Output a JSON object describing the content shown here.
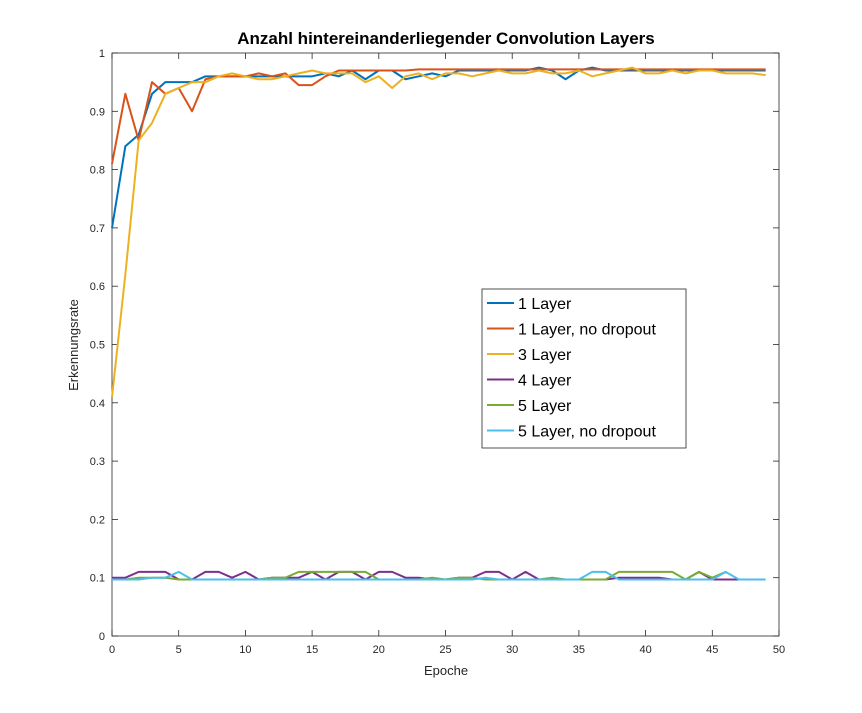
{
  "chart_data": {
    "type": "line",
    "title": "Anzahl hintereinanderliegender Convolution Layers",
    "xlabel": "Epoche",
    "ylabel": "Erkennungsrate",
    "xlim": [
      0,
      50
    ],
    "ylim": [
      0,
      1
    ],
    "xticks": [
      "0",
      "5",
      "10",
      "15",
      "20",
      "25",
      "30",
      "35",
      "40",
      "45",
      "50"
    ],
    "yticks": [
      "0",
      "0.1",
      "0.2",
      "0.3",
      "0.4",
      "0.5",
      "0.6",
      "0.7",
      "0.8",
      "0.9",
      "1"
    ],
    "grid": false,
    "legend_position": "center-right",
    "series": [
      {
        "name": "1 Layer",
        "color": "#0072BD",
        "x": [
          0,
          1,
          2,
          3,
          4,
          5,
          6,
          7,
          8,
          9,
          10,
          11,
          12,
          13,
          14,
          15,
          16,
          17,
          18,
          19,
          20,
          21,
          22,
          23,
          24,
          25,
          26,
          27,
          28,
          29,
          30,
          31,
          32,
          33,
          34,
          35,
          36,
          37,
          38,
          39,
          40,
          41,
          42,
          43,
          44,
          45,
          46,
          47,
          48,
          49
        ],
        "values": [
          0.7,
          0.84,
          0.86,
          0.93,
          0.95,
          0.95,
          0.95,
          0.96,
          0.96,
          0.96,
          0.96,
          0.96,
          0.96,
          0.96,
          0.96,
          0.96,
          0.965,
          0.96,
          0.97,
          0.955,
          0.97,
          0.97,
          0.955,
          0.96,
          0.965,
          0.96,
          0.97,
          0.97,
          0.97,
          0.97,
          0.97,
          0.97,
          0.975,
          0.97,
          0.955,
          0.97,
          0.975,
          0.97,
          0.97,
          0.97,
          0.97,
          0.97,
          0.97,
          0.97,
          0.97,
          0.97,
          0.97,
          0.97,
          0.97,
          0.97
        ]
      },
      {
        "name": "1 Layer, no dropout",
        "color": "#D95319",
        "x": [
          0,
          1,
          2,
          3,
          4,
          5,
          6,
          7,
          8,
          9,
          10,
          11,
          12,
          13,
          14,
          15,
          16,
          17,
          18,
          19,
          20,
          21,
          22,
          23,
          24,
          25,
          26,
          27,
          28,
          29,
          30,
          31,
          32,
          33,
          34,
          35,
          36,
          37,
          38,
          39,
          40,
          41,
          42,
          43,
          44,
          45,
          46,
          47,
          48,
          49
        ],
        "values": [
          0.81,
          0.93,
          0.85,
          0.95,
          0.93,
          0.94,
          0.9,
          0.955,
          0.96,
          0.96,
          0.96,
          0.965,
          0.96,
          0.965,
          0.945,
          0.945,
          0.96,
          0.97,
          0.97,
          0.97,
          0.97,
          0.97,
          0.97,
          0.972,
          0.972,
          0.972,
          0.972,
          0.972,
          0.972,
          0.972,
          0.972,
          0.972,
          0.972,
          0.972,
          0.972,
          0.972,
          0.972,
          0.972,
          0.972,
          0.972,
          0.972,
          0.972,
          0.972,
          0.972,
          0.972,
          0.972,
          0.972,
          0.972,
          0.972,
          0.972
        ]
      },
      {
        "name": "3 Layer",
        "color": "#EDB120",
        "x": [
          0,
          1,
          2,
          3,
          4,
          5,
          6,
          7,
          8,
          9,
          10,
          11,
          12,
          13,
          14,
          15,
          16,
          17,
          18,
          19,
          20,
          21,
          22,
          23,
          24,
          25,
          26,
          27,
          28,
          29,
          30,
          31,
          32,
          33,
          34,
          35,
          36,
          37,
          38,
          39,
          40,
          41,
          42,
          43,
          44,
          45,
          46,
          47,
          48,
          49
        ],
        "values": [
          0.41,
          0.62,
          0.85,
          0.88,
          0.93,
          0.94,
          0.95,
          0.95,
          0.96,
          0.965,
          0.96,
          0.955,
          0.955,
          0.96,
          0.965,
          0.97,
          0.965,
          0.965,
          0.965,
          0.95,
          0.96,
          0.94,
          0.96,
          0.965,
          0.955,
          0.965,
          0.965,
          0.96,
          0.965,
          0.97,
          0.965,
          0.965,
          0.97,
          0.965,
          0.965,
          0.97,
          0.96,
          0.965,
          0.97,
          0.975,
          0.965,
          0.965,
          0.97,
          0.965,
          0.97,
          0.97,
          0.965,
          0.965,
          0.965,
          0.962
        ]
      },
      {
        "name": "4 Layer",
        "color": "#7E2F8E",
        "x": [
          0,
          1,
          2,
          3,
          4,
          5,
          6,
          7,
          8,
          9,
          10,
          11,
          12,
          13,
          14,
          15,
          16,
          17,
          18,
          19,
          20,
          21,
          22,
          23,
          24,
          25,
          26,
          27,
          28,
          29,
          30,
          31,
          32,
          33,
          34,
          35,
          36,
          37,
          38,
          39,
          40,
          41,
          42,
          43,
          44,
          45,
          46,
          47
        ],
        "values": [
          0.1,
          0.1,
          0.11,
          0.11,
          0.11,
          0.097,
          0.097,
          0.11,
          0.11,
          0.1,
          0.11,
          0.097,
          0.1,
          0.1,
          0.1,
          0.11,
          0.097,
          0.11,
          0.11,
          0.097,
          0.11,
          0.11,
          0.1,
          0.1,
          0.097,
          0.097,
          0.1,
          0.1,
          0.11,
          0.11,
          0.097,
          0.11,
          0.097,
          0.097,
          0.097,
          0.097,
          0.097,
          0.097,
          0.1,
          0.1,
          0.1,
          0.1,
          0.097,
          0.097,
          0.11,
          0.097,
          0.097,
          0.097
        ]
      },
      {
        "name": "5 Layer",
        "color": "#77AC30",
        "x": [
          0,
          1,
          2,
          3,
          4,
          5,
          6,
          7,
          8,
          9,
          10,
          11,
          12,
          13,
          14,
          15,
          16,
          17,
          18,
          19,
          20,
          21,
          22,
          23,
          24,
          25,
          26,
          27,
          28,
          29,
          30,
          31,
          32,
          33,
          34,
          35,
          36,
          37,
          38,
          39,
          40,
          41,
          42,
          43,
          44,
          45,
          46
        ],
        "values": [
          0.097,
          0.097,
          0.1,
          0.1,
          0.1,
          0.097,
          0.097,
          0.097,
          0.097,
          0.097,
          0.097,
          0.097,
          0.1,
          0.1,
          0.11,
          0.11,
          0.11,
          0.11,
          0.11,
          0.11,
          0.097,
          0.097,
          0.097,
          0.097,
          0.1,
          0.097,
          0.1,
          0.1,
          0.097,
          0.097,
          0.097,
          0.097,
          0.097,
          0.1,
          0.097,
          0.097,
          0.097,
          0.097,
          0.11,
          0.11,
          0.11,
          0.11,
          0.11,
          0.097,
          0.11,
          0.1,
          0.11
        ]
      },
      {
        "name": "5 Layer, no dropout",
        "color": "#4DBEEE",
        "x": [
          0,
          1,
          2,
          3,
          4,
          5,
          6,
          7,
          8,
          9,
          10,
          11,
          12,
          13,
          14,
          15,
          16,
          17,
          18,
          19,
          20,
          21,
          22,
          23,
          24,
          25,
          26,
          27,
          28,
          29,
          30,
          31,
          32,
          33,
          34,
          35,
          36,
          37,
          38,
          39,
          40,
          41,
          42,
          43,
          44,
          45,
          46,
          47,
          48,
          49
        ],
        "values": [
          0.097,
          0.097,
          0.097,
          0.1,
          0.1,
          0.11,
          0.097,
          0.097,
          0.097,
          0.097,
          0.097,
          0.097,
          0.097,
          0.097,
          0.097,
          0.097,
          0.097,
          0.097,
          0.097,
          0.097,
          0.097,
          0.097,
          0.097,
          0.097,
          0.097,
          0.097,
          0.097,
          0.097,
          0.1,
          0.097,
          0.097,
          0.097,
          0.097,
          0.097,
          0.097,
          0.097,
          0.11,
          0.11,
          0.097,
          0.097,
          0.097,
          0.097,
          0.097,
          0.097,
          0.097,
          0.097,
          0.11,
          0.097,
          0.097,
          0.097
        ]
      }
    ]
  }
}
